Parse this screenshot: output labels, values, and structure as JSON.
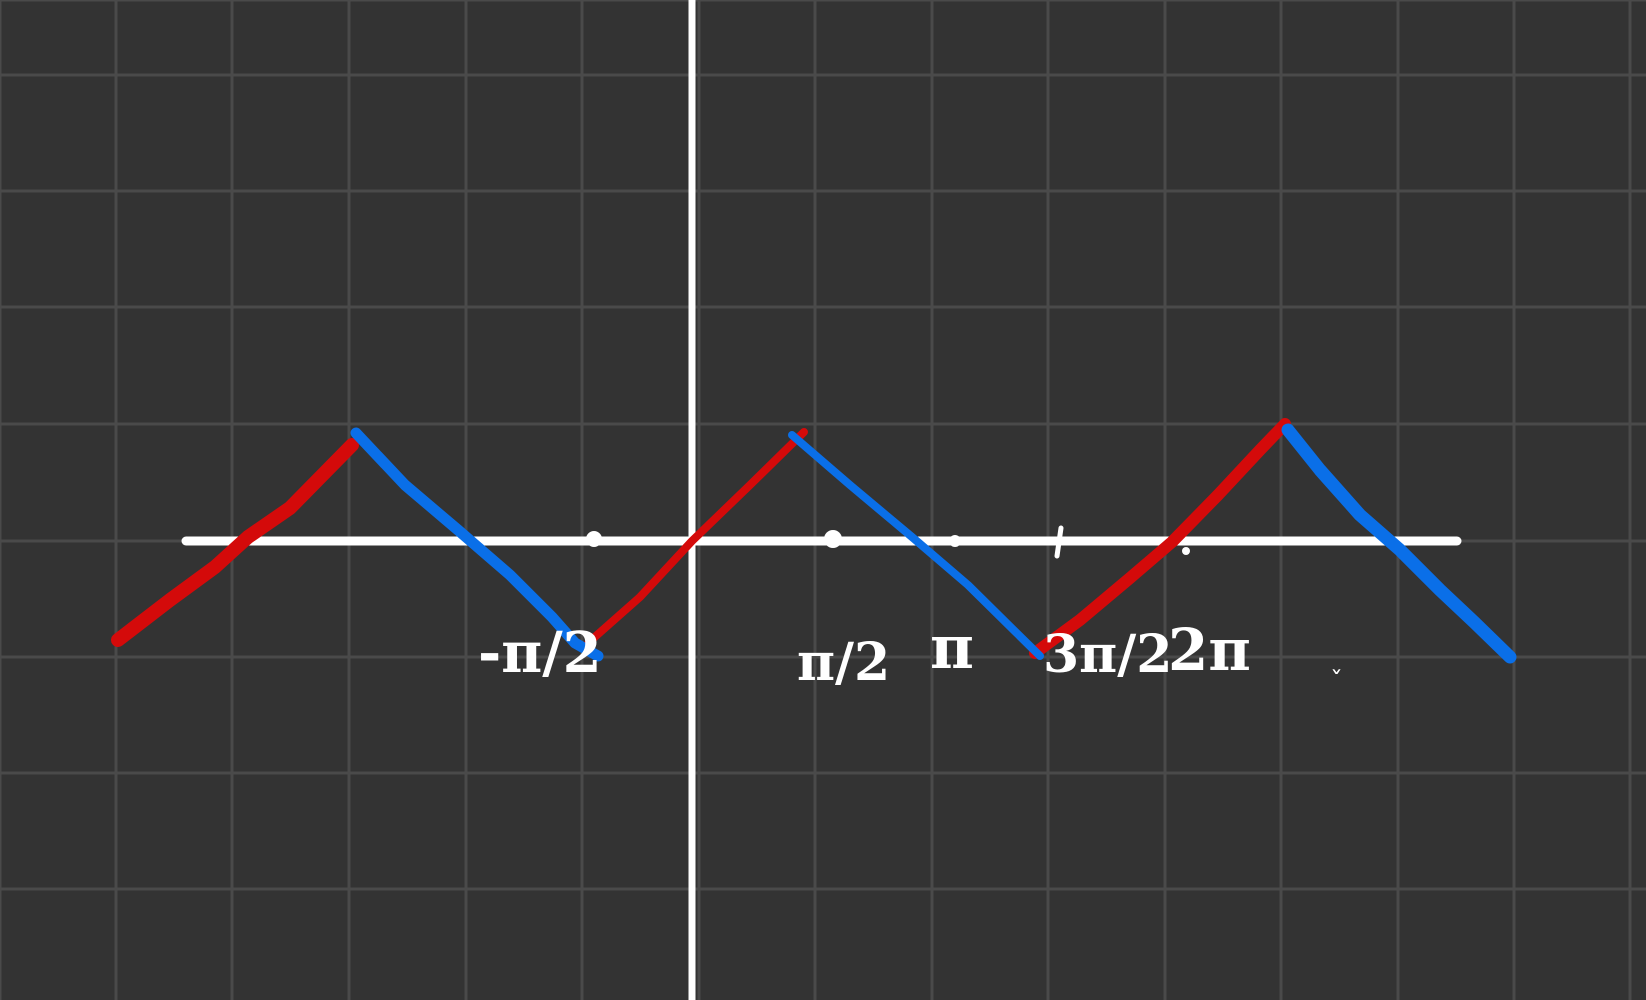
{
  "board": {
    "background_color": "#333333",
    "grid_color": "#4a4a4a",
    "axis_color": "#ffffff"
  },
  "tick_labels": {
    "neg_half_pi": "-π/2",
    "half_pi": "π/2",
    "pi": "π",
    "three_half_pi": "3π/2",
    "two_pi": "2π"
  },
  "stray_mark": "ˇ",
  "strokes": {
    "red_color": "#d40a0a",
    "blue_color": "#0a6fe8"
  }
}
